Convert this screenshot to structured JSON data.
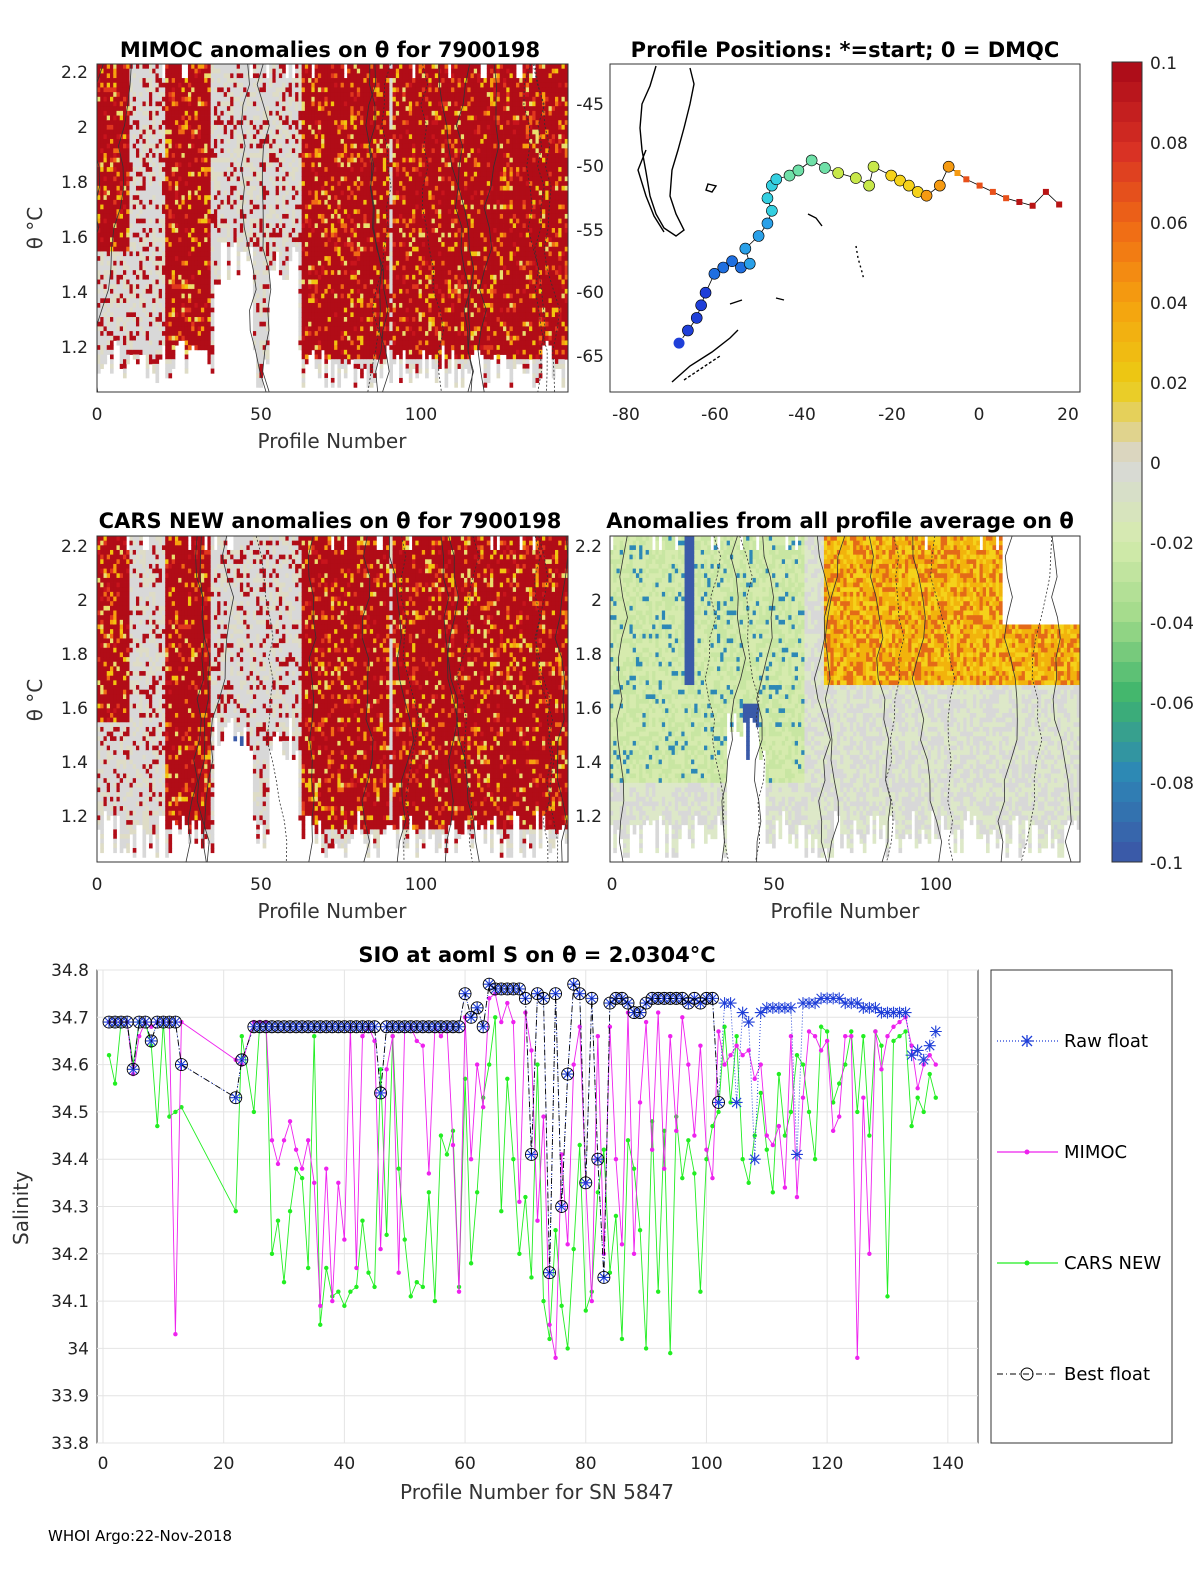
{
  "footer": "WHOI Argo:22-Nov-2018",
  "panels": {
    "mimoc": {
      "title": "MIMOC anomalies on θ  for 7900198",
      "xlabel": "Profile Number",
      "ylabel": "θ °C",
      "xticks": [
        "0",
        "50",
        "100"
      ],
      "yticks": [
        "1.2",
        "1.4",
        "1.6",
        "1.8",
        "2",
        "2.2"
      ]
    },
    "positions": {
      "title": "Profile Positions: *=start; 0 = DMQC",
      "xticks": [
        "-80",
        "-60",
        "-40",
        "-20",
        "0",
        "20"
      ],
      "yticks": [
        "-45",
        "-50",
        "-55",
        "-60",
        "-65"
      ]
    },
    "cars": {
      "title": "CARS NEW anomalies on θ for 7900198",
      "xlabel": "Profile Number",
      "ylabel": "θ °C",
      "xticks": [
        "0",
        "50",
        "100"
      ],
      "yticks": [
        "1.2",
        "1.4",
        "1.6",
        "1.8",
        "2",
        "2.2"
      ]
    },
    "allavg": {
      "title": "Anomalies from all profile average on θ",
      "xlabel": "Profile Number",
      "xticks": [
        "0",
        "50",
        "100"
      ],
      "yticks": [
        "1.2",
        "1.4",
        "1.6",
        "1.8",
        "2",
        "2.2"
      ]
    }
  },
  "colorbar": {
    "ticks": [
      "0.1",
      "0.08",
      "0.06",
      "0.04",
      "0.02",
      "0",
      "-0.02",
      "-0.04",
      "-0.06",
      "-0.08",
      "-0.1"
    ],
    "colors": [
      "#ae0d19",
      "#d83024",
      "#f06b15",
      "#f5a30f",
      "#eccc14",
      "#d8d8d8",
      "#d6ebae",
      "#a2db8a",
      "#3fb56b",
      "#2d88b6",
      "#3a5aa8"
    ]
  },
  "chart_data": {
    "type": "line",
    "title": "SIO at aoml S on θ = 2.0304°C",
    "xlabel": "Profile Number for SN 5847",
    "ylabel": "Salinity",
    "xlim": [
      0,
      145
    ],
    "ylim": [
      33.8,
      34.8
    ],
    "xticks": [
      "0",
      "20",
      "40",
      "60",
      "80",
      "100",
      "120",
      "140"
    ],
    "yticks": [
      "33.8",
      "33.9",
      "34",
      "34.1",
      "34.2",
      "34.3",
      "34.4",
      "34.5",
      "34.6",
      "34.7",
      "34.8"
    ],
    "legend_position": "right",
    "series": [
      {
        "name": "Raw float",
        "color": "#1f3fd8",
        "x": [
          1,
          2,
          3,
          4,
          5,
          6,
          7,
          8,
          9,
          10,
          11,
          12,
          13,
          22,
          23,
          25,
          26,
          27,
          28,
          29,
          30,
          31,
          32,
          33,
          34,
          35,
          36,
          37,
          38,
          39,
          40,
          41,
          42,
          43,
          44,
          45,
          46,
          47,
          48,
          49,
          50,
          51,
          52,
          53,
          54,
          55,
          56,
          57,
          58,
          59,
          60,
          61,
          62,
          63,
          64,
          65,
          66,
          67,
          68,
          69,
          70,
          71,
          72,
          73,
          74,
          75,
          76,
          77,
          78,
          79,
          80,
          81,
          82,
          83,
          84,
          85,
          86,
          87,
          88,
          89,
          90,
          91,
          92,
          93,
          94,
          95,
          96,
          97,
          98,
          99,
          100,
          101,
          102,
          103,
          104,
          105,
          106,
          107,
          108,
          109,
          110,
          111,
          112,
          113,
          114,
          115,
          116,
          117,
          118,
          119,
          120,
          121,
          122,
          123,
          124,
          125,
          126,
          127,
          128,
          129,
          130,
          131,
          132,
          133,
          134,
          135,
          136,
          137,
          138
        ],
        "y": [
          34.69,
          34.69,
          34.69,
          34.69,
          34.59,
          34.69,
          34.69,
          34.65,
          34.69,
          34.69,
          34.69,
          34.69,
          34.6,
          34.53,
          34.61,
          34.68,
          34.68,
          34.68,
          34.68,
          34.68,
          34.68,
          34.68,
          34.68,
          34.68,
          34.68,
          34.68,
          34.68,
          34.68,
          34.68,
          34.68,
          34.68,
          34.68,
          34.68,
          34.68,
          34.68,
          34.68,
          34.54,
          34.68,
          34.68,
          34.68,
          34.68,
          34.68,
          34.68,
          34.68,
          34.68,
          34.68,
          34.68,
          34.68,
          34.68,
          34.68,
          34.75,
          34.7,
          34.72,
          34.68,
          34.77,
          34.76,
          34.76,
          34.76,
          34.76,
          34.76,
          34.74,
          34.41,
          34.75,
          34.74,
          34.16,
          34.75,
          34.3,
          34.58,
          34.77,
          34.75,
          34.35,
          34.74,
          34.4,
          34.15,
          34.73,
          34.74,
          34.74,
          34.73,
          34.71,
          34.71,
          34.73,
          34.74,
          34.74,
          34.74,
          34.74,
          34.74,
          34.74,
          34.73,
          34.74,
          34.73,
          34.74,
          34.74,
          34.52,
          34.73,
          34.73,
          34.52,
          34.71,
          34.69,
          34.4,
          34.71,
          34.72,
          34.72,
          34.72,
          34.72,
          34.72,
          34.41,
          34.73,
          34.73,
          34.73,
          34.74,
          34.74,
          34.74,
          34.74,
          34.73,
          34.73,
          34.73,
          34.72,
          34.72,
          34.72,
          34.71,
          34.71,
          34.71,
          34.71,
          34.71,
          34.62,
          34.63,
          34.61,
          34.64,
          34.67
        ]
      },
      {
        "name": "MIMOC",
        "color": "#ee22ee",
        "x": [
          1,
          2,
          3,
          4,
          5,
          6,
          7,
          8,
          9,
          10,
          11,
          12,
          13,
          22,
          23,
          25,
          26,
          27,
          28,
          29,
          30,
          31,
          32,
          33,
          34,
          35,
          36,
          37,
          38,
          39,
          40,
          41,
          42,
          43,
          44,
          45,
          46,
          47,
          48,
          49,
          50,
          51,
          52,
          53,
          54,
          55,
          56,
          57,
          58,
          59,
          60,
          61,
          62,
          63,
          64,
          65,
          66,
          67,
          68,
          69,
          70,
          71,
          72,
          73,
          74,
          75,
          76,
          77,
          78,
          79,
          80,
          81,
          82,
          83,
          84,
          85,
          86,
          87,
          88,
          89,
          90,
          91,
          92,
          93,
          94,
          95,
          96,
          97,
          98,
          99,
          100,
          101,
          102,
          103,
          104,
          105,
          106,
          107,
          108,
          109,
          110,
          111,
          112,
          113,
          114,
          115,
          116,
          117,
          118,
          119,
          120,
          121,
          122,
          123,
          124,
          125,
          126,
          127,
          128,
          129,
          130,
          131,
          132,
          133,
          134,
          135,
          136,
          137,
          138
        ],
        "y": [
          34.69,
          34.69,
          34.69,
          34.69,
          34.58,
          34.66,
          34.69,
          34.68,
          34.69,
          34.69,
          34.69,
          34.03,
          34.69,
          34.61,
          34.6,
          34.69,
          34.69,
          34.69,
          34.44,
          34.39,
          34.44,
          34.48,
          34.42,
          34.38,
          34.44,
          34.35,
          34.09,
          34.38,
          34.1,
          34.35,
          34.23,
          34.68,
          34.17,
          34.66,
          34.68,
          34.65,
          34.21,
          34.59,
          34.66,
          34.16,
          34.68,
          34.68,
          34.65,
          34.64,
          34.37,
          34.68,
          34.66,
          34.68,
          34.43,
          34.12,
          34.7,
          34.4,
          34.6,
          34.51,
          34.74,
          34.75,
          34.69,
          34.73,
          34.69,
          34.31,
          34.71,
          34.63,
          34.27,
          34.49,
          34.05,
          33.98,
          34.41,
          34.22,
          34.6,
          34.68,
          34.35,
          34.1,
          34.66,
          34.2,
          34.68,
          34.4,
          34.22,
          34.71,
          34.2,
          34.52,
          34.69,
          34.42,
          34.71,
          34.38,
          34.66,
          34.46,
          34.7,
          34.6,
          34.45,
          34.64,
          34.42,
          34.36,
          34.67,
          34.6,
          34.62,
          34.64,
          34.62,
          34.63,
          34.57,
          34.6,
          34.45,
          34.43,
          34.47,
          34.34,
          34.66,
          34.32,
          34.53,
          34.67,
          34.66,
          34.63,
          34.65,
          34.46,
          34.49,
          34.66,
          34.66,
          33.98,
          34.53,
          34.2,
          34.67,
          34.59,
          34.66,
          34.68,
          34.69,
          34.7,
          34.64,
          34.55,
          34.6,
          34.62,
          34.6
        ]
      },
      {
        "name": "CARS NEW",
        "color": "#22ee22",
        "x": [
          1,
          2,
          3,
          4,
          5,
          6,
          7,
          8,
          9,
          10,
          11,
          12,
          13,
          22,
          23,
          25,
          26,
          27,
          28,
          29,
          30,
          31,
          32,
          33,
          34,
          35,
          36,
          37,
          38,
          39,
          40,
          41,
          42,
          43,
          44,
          45,
          46,
          47,
          48,
          49,
          50,
          51,
          52,
          53,
          54,
          55,
          56,
          57,
          58,
          59,
          60,
          61,
          62,
          63,
          64,
          65,
          66,
          67,
          68,
          69,
          70,
          71,
          72,
          73,
          74,
          75,
          76,
          77,
          78,
          79,
          80,
          81,
          82,
          83,
          84,
          85,
          86,
          87,
          88,
          89,
          90,
          91,
          92,
          93,
          94,
          95,
          96,
          97,
          98,
          99,
          100,
          101,
          102,
          103,
          104,
          105,
          106,
          107,
          108,
          109,
          110,
          111,
          112,
          113,
          114,
          115,
          116,
          117,
          118,
          119,
          120,
          121,
          122,
          123,
          124,
          125,
          126,
          127,
          128,
          129,
          130,
          131,
          132,
          133,
          134,
          135,
          136,
          137,
          138
        ],
        "y": [
          34.62,
          34.56,
          34.69,
          34.69,
          34.6,
          34.69,
          34.69,
          34.64,
          34.47,
          34.69,
          34.49,
          34.5,
          34.51,
          34.29,
          34.66,
          34.5,
          34.69,
          34.69,
          34.2,
          34.27,
          34.14,
          34.29,
          34.38,
          34.36,
          34.17,
          34.66,
          34.05,
          34.17,
          34.11,
          34.12,
          34.09,
          34.12,
          34.13,
          34.27,
          34.16,
          34.13,
          34.59,
          34.24,
          34.66,
          34.38,
          34.23,
          34.11,
          34.14,
          34.13,
          34.33,
          34.1,
          34.45,
          34.41,
          34.46,
          34.13,
          34.57,
          34.18,
          34.33,
          34.53,
          34.6,
          34.7,
          34.29,
          34.57,
          34.4,
          34.2,
          34.32,
          34.15,
          34.6,
          34.1,
          34.02,
          34.25,
          34.09,
          34.0,
          34.21,
          34.43,
          34.08,
          34.12,
          34.33,
          34.42,
          34.16,
          34.28,
          34.02,
          34.44,
          34.38,
          34.25,
          34.0,
          34.48,
          34.12,
          34.46,
          33.99,
          34.49,
          34.36,
          34.44,
          34.37,
          34.12,
          34.4,
          34.47,
          34.5,
          34.68,
          34.52,
          34.66,
          34.4,
          34.35,
          34.45,
          34.54,
          34.42,
          34.33,
          34.58,
          34.45,
          34.5,
          34.62,
          34.6,
          34.5,
          34.4,
          34.68,
          34.67,
          34.52,
          34.56,
          34.6,
          34.67,
          34.5,
          34.66,
          34.45,
          34.67,
          34.64,
          34.11,
          34.65,
          34.66,
          34.67,
          34.47,
          34.53,
          34.5,
          34.58,
          34.53
        ]
      },
      {
        "name": "Best float",
        "color": "#000000",
        "x": [
          1,
          2,
          3,
          4,
          5,
          6,
          7,
          8,
          9,
          10,
          11,
          12,
          13,
          22,
          23,
          25,
          26,
          27,
          28,
          29,
          30,
          31,
          32,
          33,
          34,
          35,
          36,
          37,
          38,
          39,
          40,
          41,
          42,
          43,
          44,
          45,
          46,
          47,
          48,
          49,
          50,
          51,
          52,
          53,
          54,
          55,
          56,
          57,
          58,
          59,
          60,
          61,
          62,
          63,
          64,
          65,
          66,
          67,
          68,
          69,
          70,
          71,
          72,
          73,
          74,
          75,
          76,
          77,
          78,
          79,
          80,
          81,
          82,
          83,
          84,
          85,
          86,
          87,
          88,
          89,
          90,
          91,
          92,
          93,
          94,
          95,
          96,
          97,
          98,
          99,
          100,
          101,
          102
        ],
        "y": [
          34.69,
          34.69,
          34.69,
          34.69,
          34.59,
          34.69,
          34.69,
          34.65,
          34.69,
          34.69,
          34.69,
          34.69,
          34.6,
          34.53,
          34.61,
          34.68,
          34.68,
          34.68,
          34.68,
          34.68,
          34.68,
          34.68,
          34.68,
          34.68,
          34.68,
          34.68,
          34.68,
          34.68,
          34.68,
          34.68,
          34.68,
          34.68,
          34.68,
          34.68,
          34.68,
          34.68,
          34.54,
          34.68,
          34.68,
          34.68,
          34.68,
          34.68,
          34.68,
          34.68,
          34.68,
          34.68,
          34.68,
          34.68,
          34.68,
          34.68,
          34.75,
          34.7,
          34.72,
          34.68,
          34.77,
          34.76,
          34.76,
          34.76,
          34.76,
          34.76,
          34.74,
          34.41,
          34.75,
          34.74,
          34.16,
          34.75,
          34.3,
          34.58,
          34.77,
          34.75,
          34.35,
          34.74,
          34.4,
          34.15,
          34.73,
          34.74,
          34.74,
          34.73,
          34.71,
          34.71,
          34.73,
          34.74,
          34.74,
          34.74,
          34.74,
          34.74,
          34.74,
          34.73,
          34.74,
          34.73,
          34.74,
          34.74,
          34.52
        ]
      }
    ]
  }
}
